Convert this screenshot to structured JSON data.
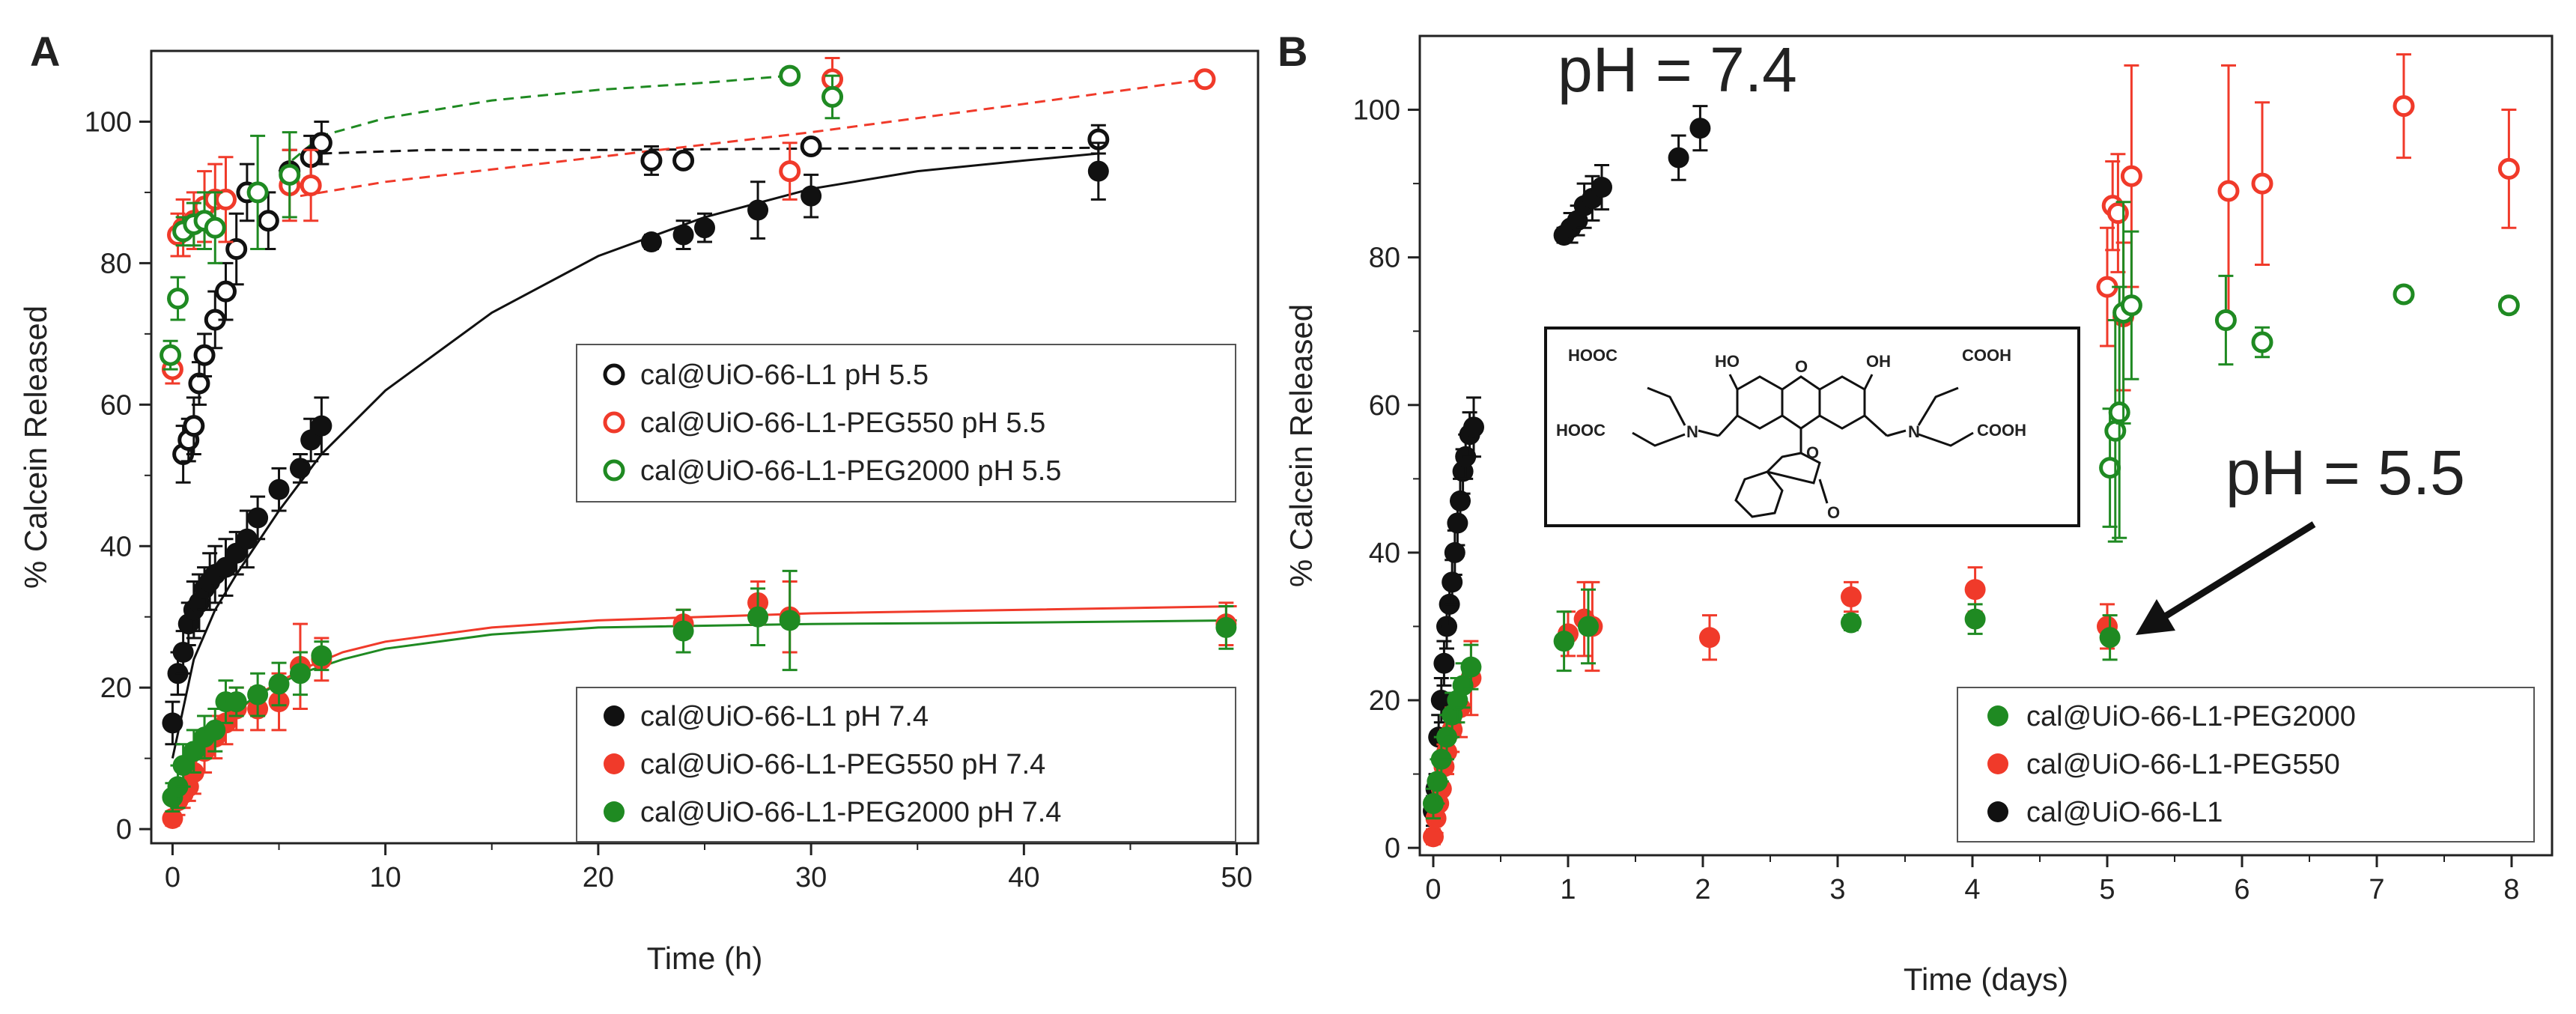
{
  "figure": {
    "colors": {
      "black": "#111111",
      "red": "#f03a2a",
      "green": "#1f8a22"
    }
  },
  "chart_data": [
    {
      "panel": "A",
      "type": "scatter",
      "xlabel": "Time (h)",
      "ylabel": "% Calcein Released",
      "xlim": [
        -1,
        51
      ],
      "ylim": [
        -2,
        110
      ],
      "xticks": [
        0,
        10,
        20,
        30,
        40,
        50
      ],
      "yticks": [
        0,
        20,
        40,
        60,
        80,
        100
      ],
      "legend_top": {
        "placement": "middle-right",
        "entries": [
          {
            "label": "cal@UiO-66-L1 pH 5.5",
            "color": "#111111",
            "marker": "open"
          },
          {
            "label": "cal@UiO-66-L1-PEG550 pH 5.5",
            "color": "#f03a2a",
            "marker": "open"
          },
          {
            "label": "cal@UiO-66-L1-PEG2000 pH 5.5",
            "color": "#1f8a22",
            "marker": "open"
          }
        ]
      },
      "legend_bottom": {
        "placement": "bottom-right",
        "entries": [
          {
            "label": "cal@UiO-66-L1 pH 7.4",
            "color": "#111111",
            "marker": "filled"
          },
          {
            "label": "cal@UiO-66-L1-PEG550 pH 7.4",
            "color": "#f03a2a",
            "marker": "filled"
          },
          {
            "label": "cal@UiO-66-L1-PEG2000 pH 7.4",
            "color": "#1f8a22",
            "marker": "filled"
          }
        ]
      },
      "series": [
        {
          "name": "cal@UiO-66-L1 pH 5.5",
          "color": "#111111",
          "marker": "open",
          "x": [
            0.5,
            0.75,
            1.0,
            1.25,
            1.5,
            2.0,
            2.5,
            3.0,
            3.5,
            4.5,
            5.5,
            6.5,
            7.0,
            22.5,
            24.0,
            30.0,
            43.5
          ],
          "y": [
            53,
            55,
            57,
            63,
            67,
            72,
            76,
            82,
            90,
            86,
            93,
            95,
            97,
            94.5,
            94.5,
            96.5,
            97.5
          ],
          "err": [
            4,
            3,
            4,
            3,
            3,
            4,
            4,
            5,
            4,
            4,
            3,
            3,
            3,
            2,
            1,
            1,
            2
          ]
        },
        {
          "name": "cal@UiO-66-L1-PEG550 pH 5.5",
          "color": "#f03a2a",
          "marker": "open",
          "x": [
            0.0,
            0.25,
            0.5,
            1.0,
            1.5,
            2.0,
            2.5,
            5.5,
            6.5,
            29.0,
            31.0,
            48.5
          ],
          "y": [
            65,
            84,
            85,
            86,
            88,
            89,
            89,
            91,
            91,
            93,
            106,
            106
          ],
          "err": [
            2,
            3,
            4,
            4,
            5,
            5,
            6,
            5,
            5,
            4,
            3,
            1
          ]
        },
        {
          "name": "cal@UiO-66-L1-PEG2000 pH 5.5",
          "color": "#1f8a22",
          "marker": "open",
          "x": [
            -0.1,
            0.25,
            0.5,
            1.0,
            1.5,
            2.0,
            4.0,
            5.5,
            29.0,
            31.0
          ],
          "y": [
            67,
            75,
            84.5,
            85.5,
            86,
            85,
            90,
            92.5,
            106.5,
            103.5
          ],
          "err": [
            2,
            3,
            2,
            3,
            4,
            5,
            8,
            6,
            1,
            3
          ]
        },
        {
          "name": "cal@UiO-66-L1 pH 7.4",
          "color": "#111111",
          "marker": "filled",
          "x": [
            0.0,
            0.25,
            0.5,
            0.75,
            1.0,
            1.25,
            1.5,
            1.75,
            2.0,
            2.5,
            3.0,
            3.5,
            4.0,
            5.0,
            6.0,
            6.5,
            7.0,
            22.5,
            24.0,
            25.0,
            27.5,
            30.0,
            43.5
          ],
          "y": [
            15,
            22,
            25,
            29,
            31,
            32,
            34,
            35,
            36,
            37,
            39,
            41,
            44,
            48,
            51,
            55,
            57,
            83,
            84,
            85,
            87.5,
            89.5,
            93
          ],
          "err": [
            3,
            3,
            3,
            3,
            4,
            4,
            3,
            4,
            4,
            4,
            3,
            4,
            3,
            3,
            2,
            3,
            4,
            1,
            2,
            2,
            4,
            3,
            4
          ]
        },
        {
          "name": "cal@UiO-66-L1-PEG550 pH 7.4",
          "color": "#f03a2a",
          "marker": "filled",
          "x": [
            0.0,
            0.25,
            0.5,
            0.75,
            1.0,
            1.5,
            2.0,
            2.5,
            3.0,
            4.0,
            5.0,
            6.0,
            7.0,
            24.0,
            27.5,
            29.0,
            49.5
          ],
          "y": [
            1.5,
            4,
            5,
            6,
            8,
            11,
            13,
            15,
            17,
            17,
            18,
            23,
            24,
            29,
            32,
            30,
            29
          ],
          "err": [
            1,
            2,
            2,
            2,
            3,
            3,
            3,
            3,
            3,
            3,
            4,
            6,
            3,
            2,
            3,
            5,
            3
          ]
        },
        {
          "name": "cal@UiO-66-L1-PEG2000 pH 7.4",
          "color": "#1f8a22",
          "marker": "filled",
          "x": [
            0.0,
            0.25,
            0.5,
            1.0,
            1.5,
            2.0,
            2.5,
            3.0,
            4.0,
            5.0,
            6.0,
            7.0,
            24.0,
            27.5,
            29.0,
            49.5
          ],
          "y": [
            4.5,
            6,
            9,
            11,
            13,
            14,
            18,
            18,
            19,
            20.5,
            22,
            24.5,
            28,
            30,
            29.5,
            28.5
          ],
          "err": [
            2,
            3,
            3,
            3,
            3,
            3,
            3,
            2,
            3,
            3,
            3,
            2,
            3,
            4,
            7,
            3
          ]
        }
      ],
      "fits": [
        {
          "name": "fit cal@UiO-66-L1 pH 5.5",
          "color": "#111111",
          "style": "dashed",
          "x": [
            7,
            12,
            20,
            30,
            43.5
          ],
          "y": [
            95.5,
            96,
            96,
            96.2,
            96.3
          ]
        },
        {
          "name": "fit cal@UiO-66-L1-PEG550 pH 5.5",
          "color": "#f03a2a",
          "style": "dashed",
          "x": [
            6,
            10,
            20,
            30,
            40,
            48.5
          ],
          "y": [
            89.5,
            91.5,
            95,
            98.5,
            102.5,
            106
          ]
        },
        {
          "name": "fit cal@UiO-66-L1-PEG2000 pH 5.5",
          "color": "#1f8a22",
          "style": "dashed",
          "x": [
            5,
            7,
            10,
            15,
            20,
            25,
            29
          ],
          "y": [
            93,
            98,
            100.5,
            103,
            104.5,
            105.5,
            106.5
          ]
        },
        {
          "name": "fit cal@UiO-66-L1 pH 7.4",
          "color": "#111111",
          "style": "solid",
          "x": [
            0,
            1,
            2,
            3,
            5,
            7,
            10,
            15,
            20,
            25,
            30,
            35,
            40,
            43.5
          ],
          "y": [
            10,
            24,
            31,
            36,
            45,
            53,
            62,
            73,
            81,
            86.5,
            90.5,
            93,
            94.5,
            95.5
          ]
        },
        {
          "name": "fit cal@UiO-66-L1-PEG550 pH 7.4",
          "color": "#f03a2a",
          "style": "solid",
          "x": [
            0,
            1,
            2,
            4,
            6,
            8,
            10,
            15,
            20,
            30,
            40,
            50
          ],
          "y": [
            1,
            9,
            14,
            19,
            22.5,
            25,
            26.5,
            28.5,
            29.5,
            30.5,
            31,
            31.5
          ]
        },
        {
          "name": "fit cal@UiO-66-L1-PEG2000 pH 7.4",
          "color": "#1f8a22",
          "style": "solid",
          "x": [
            0,
            1,
            2,
            4,
            6,
            8,
            10,
            15,
            20,
            30,
            40,
            50
          ],
          "y": [
            3,
            10.5,
            14.5,
            19,
            22,
            24,
            25.5,
            27.5,
            28.5,
            29,
            29.2,
            29.5
          ]
        }
      ]
    },
    {
      "panel": "B",
      "type": "scatter",
      "xlabel": "Time (days)",
      "ylabel": "% Calcein Released",
      "xlim": [
        -0.1,
        8.3
      ],
      "ylim": [
        -1,
        110
      ],
      "xticks": [
        0,
        1,
        2,
        3,
        4,
        5,
        6,
        7,
        8
      ],
      "yticks": [
        0,
        20,
        40,
        60,
        80,
        100
      ],
      "annotations": [
        "pH = 7.4",
        "pH = 5.5"
      ],
      "legend": {
        "placement": "bottom-right",
        "entries": [
          {
            "label": "cal@UiO-66-L1-PEG2000",
            "color": "#1f8a22",
            "marker": "filled"
          },
          {
            "label": "cal@UiO-66-L1-PEG550",
            "color": "#f03a2a",
            "marker": "filled"
          },
          {
            "label": "cal@UiO-66-L1",
            "color": "#111111",
            "marker": "filled"
          }
        ]
      },
      "structure_labels": [
        "HOOC",
        "HO",
        "O",
        "OH",
        "COOH",
        "N",
        "O",
        "O"
      ],
      "series": [
        {
          "name": "cal@UiO-66-L1 pH 7.4",
          "color": "#111111",
          "marker": "filled",
          "x": [
            0.0,
            0.02,
            0.04,
            0.06,
            0.08,
            0.1,
            0.12,
            0.14,
            0.16,
            0.18,
            0.2,
            0.22,
            0.24,
            0.27,
            0.3,
            0.97,
            1.02,
            1.07,
            1.12,
            1.18,
            1.25,
            1.82,
            1.98
          ],
          "y": [
            5,
            8,
            15,
            20,
            25,
            30,
            33,
            36,
            40,
            44,
            47,
            51,
            53,
            56,
            57,
            83,
            84,
            85,
            87,
            88,
            89.5,
            93.5,
            97.5
          ],
          "err": [
            2,
            2,
            3,
            3,
            3,
            3,
            3,
            3,
            3,
            3,
            3,
            3,
            3,
            3,
            4,
            1,
            2,
            2,
            3,
            3,
            3,
            3,
            3
          ]
        },
        {
          "name": "cal@UiO-66-L1-PEG550 pH 7.4",
          "color": "#f03a2a",
          "marker": "filled",
          "x": [
            0.0,
            0.02,
            0.04,
            0.06,
            0.08,
            0.1,
            0.14,
            0.2,
            0.28,
            1.0,
            1.12,
            1.18,
            2.05,
            3.1,
            4.02,
            5.0
          ],
          "y": [
            1.5,
            4,
            6,
            8,
            11,
            13,
            16,
            19,
            23,
            29,
            31,
            30,
            28.5,
            34,
            35,
            30
          ],
          "err": [
            1,
            2,
            2,
            2,
            3,
            3,
            3,
            4,
            5,
            3,
            5,
            6,
            3,
            2,
            3,
            3
          ]
        },
        {
          "name": "cal@UiO-66-L1-PEG2000 pH 7.4",
          "color": "#1f8a22",
          "marker": "filled",
          "x": [
            0.0,
            0.03,
            0.06,
            0.1,
            0.14,
            0.18,
            0.22,
            0.28,
            0.97,
            1.15,
            3.1,
            4.02,
            5.02
          ],
          "y": [
            6,
            9,
            12,
            15,
            18,
            20,
            22,
            24.5,
            28,
            30,
            30.5,
            31,
            28.5
          ],
          "err": [
            2,
            3,
            3,
            3,
            3,
            3,
            3,
            3,
            4,
            5,
            1,
            2,
            3
          ]
        },
        {
          "name": "cal@UiO-66-L1-PEG550 pH 5.5",
          "color": "#f03a2a",
          "marker": "open",
          "x": [
            5.0,
            5.04,
            5.08,
            5.12,
            5.18,
            5.9,
            6.15,
            7.2,
            7.98
          ],
          "y": [
            76,
            87,
            86,
            72,
            91,
            89,
            90,
            100.5,
            92
          ],
          "err": [
            8,
            6,
            8,
            10,
            15,
            17,
            11,
            7,
            8
          ]
        },
        {
          "name": "cal@UiO-66-L1-PEG2000 pH 5.5",
          "color": "#1f8a22",
          "marker": "open",
          "x": [
            5.02,
            5.06,
            5.09,
            5.12,
            5.18,
            5.88,
            6.15,
            7.2,
            7.98
          ],
          "y": [
            51.5,
            56.5,
            59,
            72.5,
            73.5,
            71.5,
            68.5,
            75,
            73.5
          ],
          "err": [
            8,
            15,
            17,
            15,
            10,
            6,
            2,
            1,
            1
          ]
        }
      ]
    }
  ]
}
